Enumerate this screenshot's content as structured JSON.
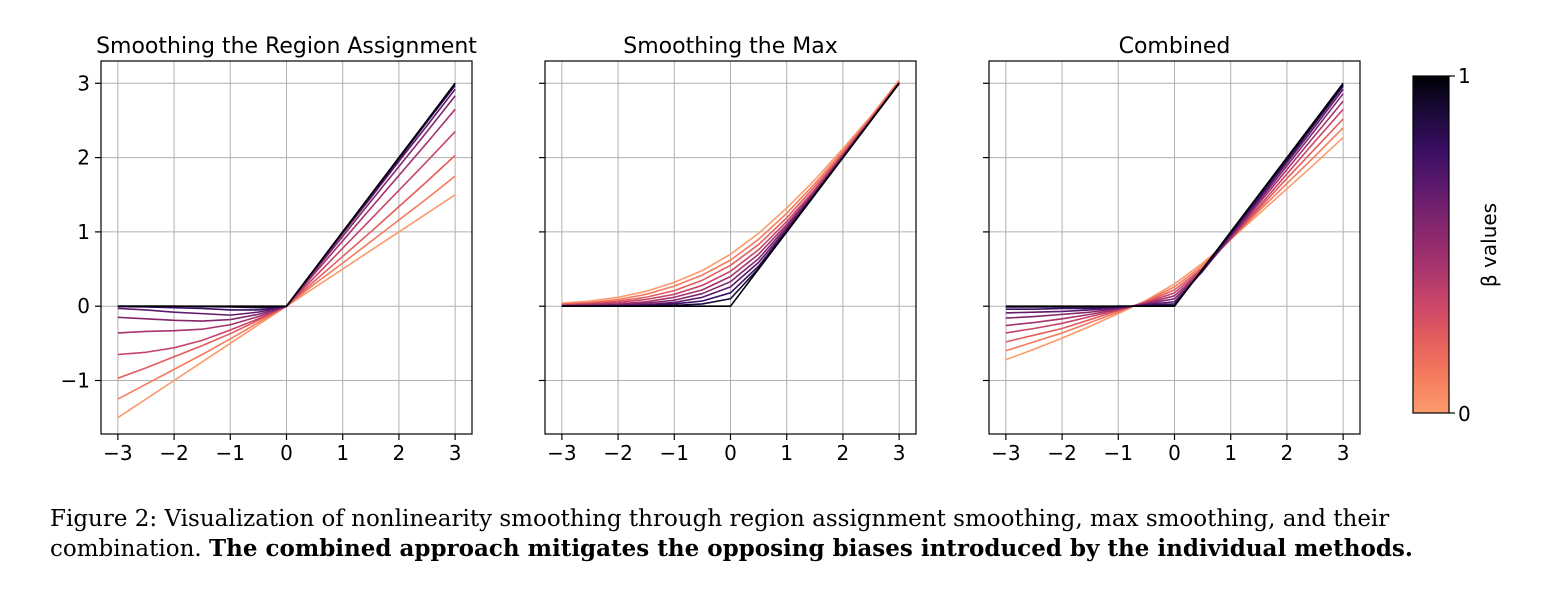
{
  "chart_data": [
    {
      "type": "line",
      "title": "Smoothing the Region Assignment",
      "xlabel": "",
      "ylabel": "",
      "xlim": [
        -3.3,
        3.3
      ],
      "ylim": [
        -1.72,
        3.3
      ],
      "xticks": [
        -3,
        -2,
        -1,
        0,
        1,
        2,
        3
      ],
      "xtick_labels": [
        "−3",
        "−2",
        "−1",
        "0",
        "1",
        "2",
        "3"
      ],
      "yticks": [
        -1,
        0,
        1,
        2,
        3
      ],
      "ytick_labels": [
        "−1",
        "0",
        "1",
        "2",
        "3"
      ],
      "grid": true,
      "x": [
        -3,
        -2.5,
        -2,
        -1.5,
        -1,
        -0.5,
        0,
        0.5,
        1,
        1.5,
        2,
        2.5,
        3
      ],
      "series": [
        {
          "color": "#fb9b6c",
          "values": [
            -1.5,
            -1.25,
            -1.0,
            -0.75,
            -0.5,
            -0.25,
            0,
            0.25,
            0.5,
            0.75,
            1.0,
            1.25,
            1.5
          ]
        },
        {
          "color": "#f47b5d",
          "values": [
            -1.25,
            -1.05,
            -0.85,
            -0.65,
            -0.44,
            -0.22,
            0,
            0.3,
            0.58,
            0.87,
            1.16,
            1.45,
            1.75
          ]
        },
        {
          "color": "#e35d5e",
          "values": [
            -0.97,
            -0.83,
            -0.68,
            -0.53,
            -0.37,
            -0.19,
            0,
            0.34,
            0.67,
            1.0,
            1.34,
            1.68,
            2.03
          ]
        },
        {
          "color": "#c84469",
          "values": [
            -0.65,
            -0.62,
            -0.56,
            -0.46,
            -0.32,
            -0.17,
            0,
            0.39,
            0.78,
            1.17,
            1.56,
            1.95,
            2.35
          ]
        },
        {
          "color": "#a5336e",
          "values": [
            -0.36,
            -0.34,
            -0.33,
            -0.31,
            -0.25,
            -0.14,
            0,
            0.44,
            0.88,
            1.32,
            1.76,
            2.2,
            2.65
          ]
        },
        {
          "color": "#83266e",
          "values": [
            -0.15,
            -0.17,
            -0.19,
            -0.2,
            -0.18,
            -0.11,
            0,
            0.47,
            0.94,
            1.41,
            1.88,
            2.35,
            2.83
          ]
        },
        {
          "color": "#5f1a6d",
          "values": [
            -0.03,
            -0.05,
            -0.08,
            -0.1,
            -0.12,
            -0.08,
            0,
            0.49,
            0.98,
            1.46,
            1.95,
            2.43,
            2.92
          ]
        },
        {
          "color": "#3a0f63",
          "values": [
            -0.005,
            -0.01,
            -0.02,
            -0.03,
            -0.05,
            -0.05,
            0,
            0.5,
            1.0,
            1.49,
            1.98,
            2.48,
            2.97
          ]
        },
        {
          "color": "#1b0a3a",
          "values": [
            0,
            0,
            0,
            -0.005,
            -0.01,
            -0.02,
            0,
            0.5,
            1.0,
            1.5,
            2.0,
            2.5,
            3.0
          ]
        },
        {
          "color": "#000004",
          "values": [
            0,
            0,
            0,
            0,
            0,
            0,
            0,
            0.5,
            1.0,
            1.5,
            2.0,
            2.5,
            3.0
          ]
        }
      ]
    },
    {
      "type": "line",
      "title": "Smoothing the Max",
      "xlabel": "",
      "ylabel": "",
      "xlim": [
        -3.3,
        3.3
      ],
      "ylim": [
        -1.72,
        3.3
      ],
      "xticks": [
        -3,
        -2,
        -1,
        0,
        1,
        2,
        3
      ],
      "xtick_labels": [
        "−3",
        "−2",
        "−1",
        "0",
        "1",
        "2",
        "3"
      ],
      "yticks": [
        -1,
        0,
        1,
        2,
        3
      ],
      "ytick_labels": [
        "",
        "",
        "",
        "",
        ""
      ],
      "grid": true,
      "x": [
        -3,
        -2.5,
        -2,
        -1.5,
        -1,
        -0.5,
        0,
        0.5,
        1,
        1.5,
        2,
        2.5,
        3
      ],
      "series": [
        {
          "color": "#fb9b6c",
          "values": [
            0.04,
            0.07,
            0.12,
            0.2,
            0.32,
            0.48,
            0.7,
            0.98,
            1.32,
            1.7,
            2.12,
            2.56,
            3.04
          ]
        },
        {
          "color": "#f47b5d",
          "values": [
            0.03,
            0.05,
            0.09,
            0.16,
            0.27,
            0.42,
            0.62,
            0.9,
            1.25,
            1.65,
            2.09,
            2.54,
            3.03
          ]
        },
        {
          "color": "#e35d5e",
          "values": [
            0.02,
            0.04,
            0.07,
            0.12,
            0.21,
            0.35,
            0.55,
            0.83,
            1.19,
            1.61,
            2.06,
            2.53,
            3.02
          ]
        },
        {
          "color": "#c84469",
          "values": [
            0.01,
            0.03,
            0.05,
            0.09,
            0.16,
            0.28,
            0.47,
            0.76,
            1.14,
            1.57,
            2.04,
            2.52,
            3.01
          ]
        },
        {
          "color": "#a5336e",
          "values": [
            0.01,
            0.02,
            0.03,
            0.06,
            0.12,
            0.22,
            0.4,
            0.7,
            1.1,
            1.55,
            2.03,
            2.51,
            3.0
          ]
        },
        {
          "color": "#83266e",
          "values": [
            0.0,
            0.01,
            0.02,
            0.04,
            0.08,
            0.17,
            0.33,
            0.64,
            1.07,
            1.53,
            2.02,
            2.51,
            3.0
          ]
        },
        {
          "color": "#5f1a6d",
          "values": [
            0,
            0.0,
            0.01,
            0.02,
            0.05,
            0.12,
            0.26,
            0.59,
            1.04,
            1.52,
            2.01,
            2.5,
            3.0
          ]
        },
        {
          "color": "#3a0f63",
          "values": [
            0,
            0,
            0.0,
            0.01,
            0.03,
            0.07,
            0.18,
            0.54,
            1.02,
            1.51,
            2.0,
            2.5,
            3.0
          ]
        },
        {
          "color": "#1b0a3a",
          "values": [
            0,
            0,
            0,
            0.0,
            0.01,
            0.03,
            0.1,
            0.51,
            1.0,
            1.5,
            2.0,
            2.5,
            3.0
          ]
        },
        {
          "color": "#000004",
          "values": [
            0,
            0,
            0,
            0,
            0,
            0,
            0,
            0.5,
            1.0,
            1.5,
            2.0,
            2.5,
            3.0
          ]
        }
      ]
    },
    {
      "type": "line",
      "title": "Combined",
      "xlabel": "",
      "ylabel": "",
      "xlim": [
        -3.3,
        3.3
      ],
      "ylim": [
        -1.72,
        3.3
      ],
      "xticks": [
        -3,
        -2,
        -1,
        0,
        1,
        2,
        3
      ],
      "xtick_labels": [
        "−3",
        "−2",
        "−1",
        "0",
        "1",
        "2",
        "3"
      ],
      "yticks": [
        -1,
        0,
        1,
        2,
        3
      ],
      "ytick_labels": [
        "",
        "",
        "",
        "",
        ""
      ],
      "grid": true,
      "x": [
        -3,
        -2.5,
        -2,
        -1.5,
        -1,
        -0.5,
        0,
        0.5,
        1,
        1.5,
        2,
        2.5,
        3
      ],
      "series": [
        {
          "color": "#fb9b6c",
          "values": [
            -0.72,
            -0.58,
            -0.43,
            -0.27,
            -0.1,
            0.08,
            0.3,
            0.58,
            0.9,
            1.24,
            1.58,
            1.92,
            2.27
          ]
        },
        {
          "color": "#f47b5d",
          "values": [
            -0.6,
            -0.48,
            -0.36,
            -0.22,
            -0.08,
            0.07,
            0.26,
            0.55,
            0.9,
            1.28,
            1.65,
            2.02,
            2.4
          ]
        },
        {
          "color": "#e35d5e",
          "values": [
            -0.48,
            -0.39,
            -0.3,
            -0.18,
            -0.06,
            0.06,
            0.22,
            0.52,
            0.9,
            1.31,
            1.72,
            2.12,
            2.52
          ]
        },
        {
          "color": "#c84469",
          "values": [
            -0.36,
            -0.3,
            -0.23,
            -0.14,
            -0.05,
            0.05,
            0.18,
            0.5,
            0.91,
            1.34,
            1.78,
            2.22,
            2.65
          ]
        },
        {
          "color": "#a5336e",
          "values": [
            -0.26,
            -0.22,
            -0.17,
            -0.11,
            -0.04,
            0.04,
            0.14,
            0.48,
            0.92,
            1.38,
            1.84,
            2.3,
            2.76
          ]
        },
        {
          "color": "#83266e",
          "values": [
            -0.16,
            -0.14,
            -0.11,
            -0.08,
            -0.03,
            0.03,
            0.1,
            0.47,
            0.94,
            1.41,
            1.89,
            2.37,
            2.86
          ]
        },
        {
          "color": "#5f1a6d",
          "values": [
            -0.09,
            -0.08,
            -0.07,
            -0.05,
            -0.02,
            0.02,
            0.06,
            0.47,
            0.96,
            1.44,
            1.93,
            2.42,
            2.92
          ]
        },
        {
          "color": "#3a0f63",
          "values": [
            -0.04,
            -0.04,
            -0.03,
            -0.03,
            -0.01,
            0.01,
            0.03,
            0.48,
            0.97,
            1.46,
            1.96,
            2.46,
            2.96
          ]
        },
        {
          "color": "#1b0a3a",
          "values": [
            -0.01,
            -0.01,
            -0.01,
            -0.01,
            0.0,
            0.0,
            0.01,
            0.49,
            0.99,
            1.49,
            1.98,
            2.48,
            2.98
          ]
        },
        {
          "color": "#000004",
          "values": [
            0,
            0,
            0,
            0,
            0,
            0,
            0,
            0.5,
            1.0,
            1.5,
            2.0,
            2.5,
            3.0
          ]
        }
      ]
    }
  ],
  "colorbar": {
    "label": "β values",
    "min_label": "0",
    "max_label": "1",
    "colors": [
      "#fb9b6c",
      "#f47b5d",
      "#e35d5e",
      "#c84469",
      "#a5336e",
      "#83266e",
      "#5f1a6d",
      "#3a0f63",
      "#1b0a3a",
      "#000004"
    ]
  },
  "caption": {
    "prefix": "Figure 2: ",
    "text": "Visualization of nonlinearity smoothing through region assignment smoothing, max smoothing, and their combination. ",
    "bold": "The combined approach mitigates the opposing biases introduced by the individual methods."
  }
}
